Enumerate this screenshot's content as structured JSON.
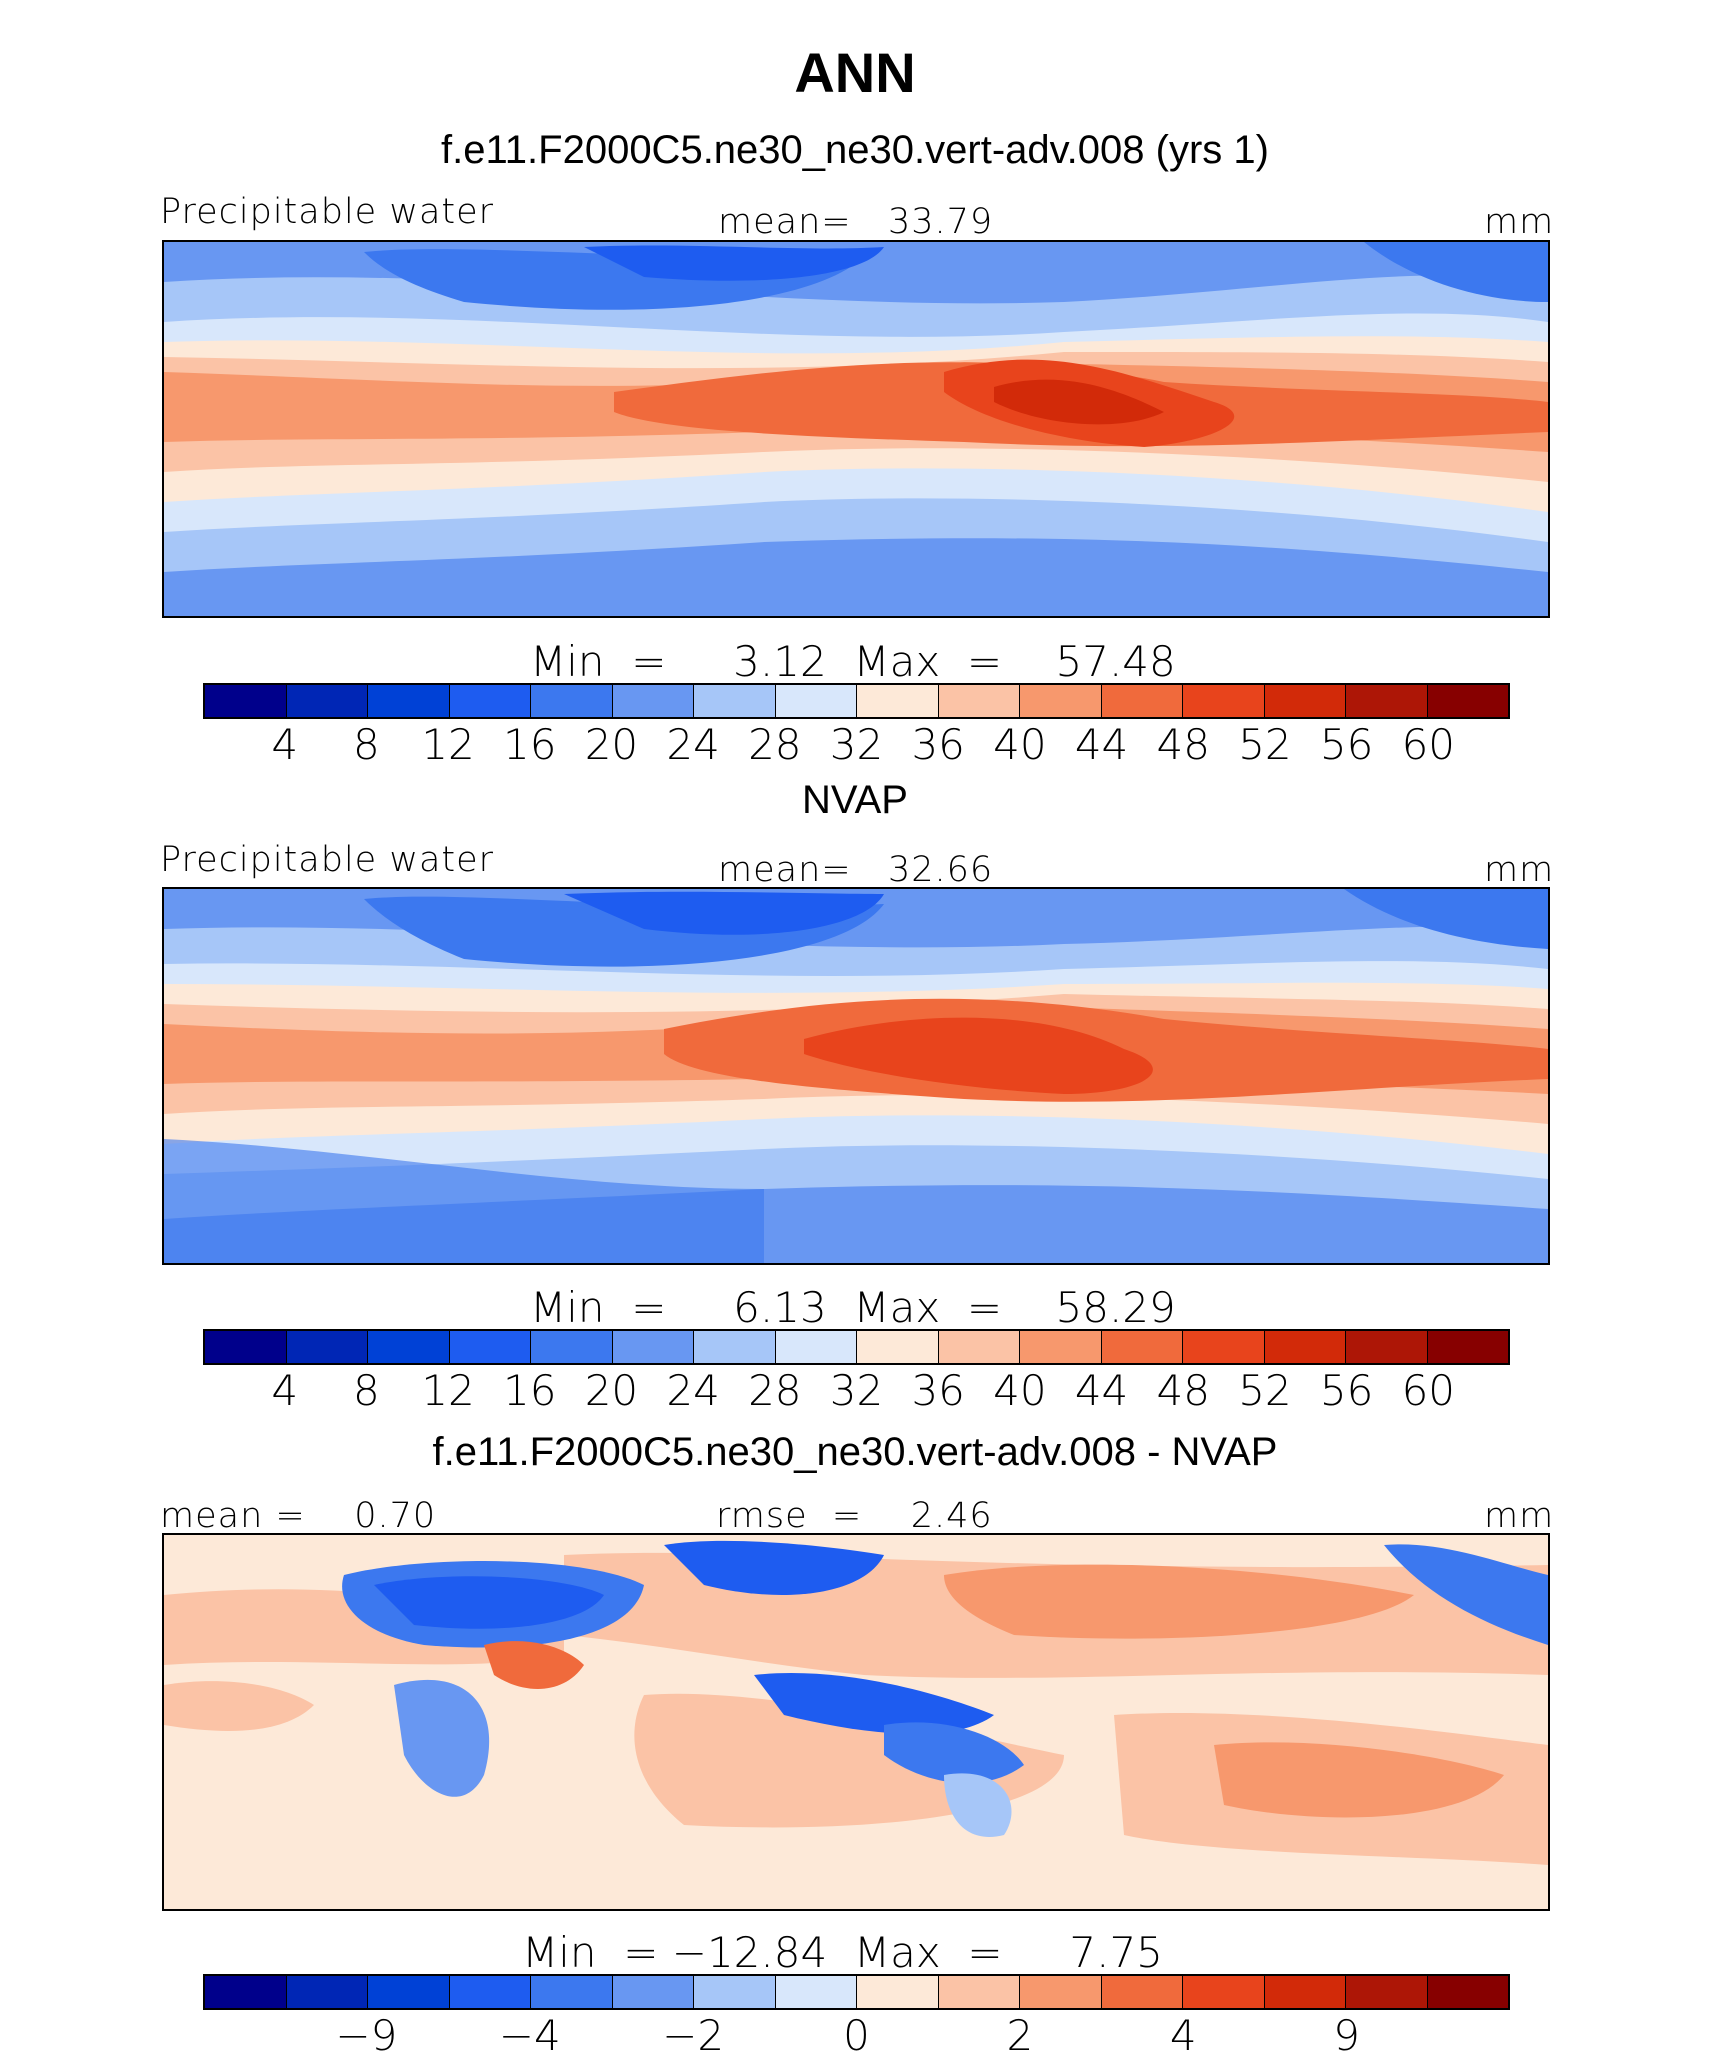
{
  "main_title": "ANN",
  "colorbar_colors": [
    "#00008b",
    "#0026b5",
    "#0041d6",
    "#1e5cf0",
    "#3c78ef",
    "#6897f2",
    "#a6c6f8",
    "#d8e7fb",
    "#fde9d8",
    "#fbc3a6",
    "#f7986d",
    "#f06a3c",
    "#e8441c",
    "#d22a09",
    "#ad1606",
    "#870000"
  ],
  "panels": [
    {
      "title": "f.e11.F2000C5.ne30_ne30.vert-adv.008 (yrs 1)",
      "left_label": "Precipitable water",
      "center_label": "mean=   33.79",
      "right_label": "mm",
      "minmax": "Min  =     3.12  Max  =    57.48",
      "ticks": [
        "4",
        "8",
        "12",
        "16",
        "20",
        "24",
        "28",
        "32",
        "36",
        "40",
        "44",
        "48",
        "52",
        "56",
        "60"
      ]
    },
    {
      "title": "NVAP",
      "left_label": "Precipitable water",
      "center_label": "mean=   32.66",
      "right_label": "mm",
      "minmax": "Min  =     6.13  Max  =    58.29",
      "ticks": [
        "4",
        "8",
        "12",
        "16",
        "20",
        "24",
        "28",
        "32",
        "36",
        "40",
        "44",
        "48",
        "52",
        "56",
        "60"
      ]
    },
    {
      "title": "f.e11.F2000C5.ne30_ne30.vert-adv.008 - NVAP",
      "left_label": "mean =    0.70",
      "center_label": "rmse  =    2.46",
      "right_label": "mm",
      "minmax": "Min  = −12.84  Max  =     7.75",
      "ticks": [
        "−9",
        "",
        "−4",
        "",
        "−2",
        "",
        "0",
        "",
        "2",
        "",
        "4",
        "",
        "9",
        ""
      ]
    }
  ]
}
